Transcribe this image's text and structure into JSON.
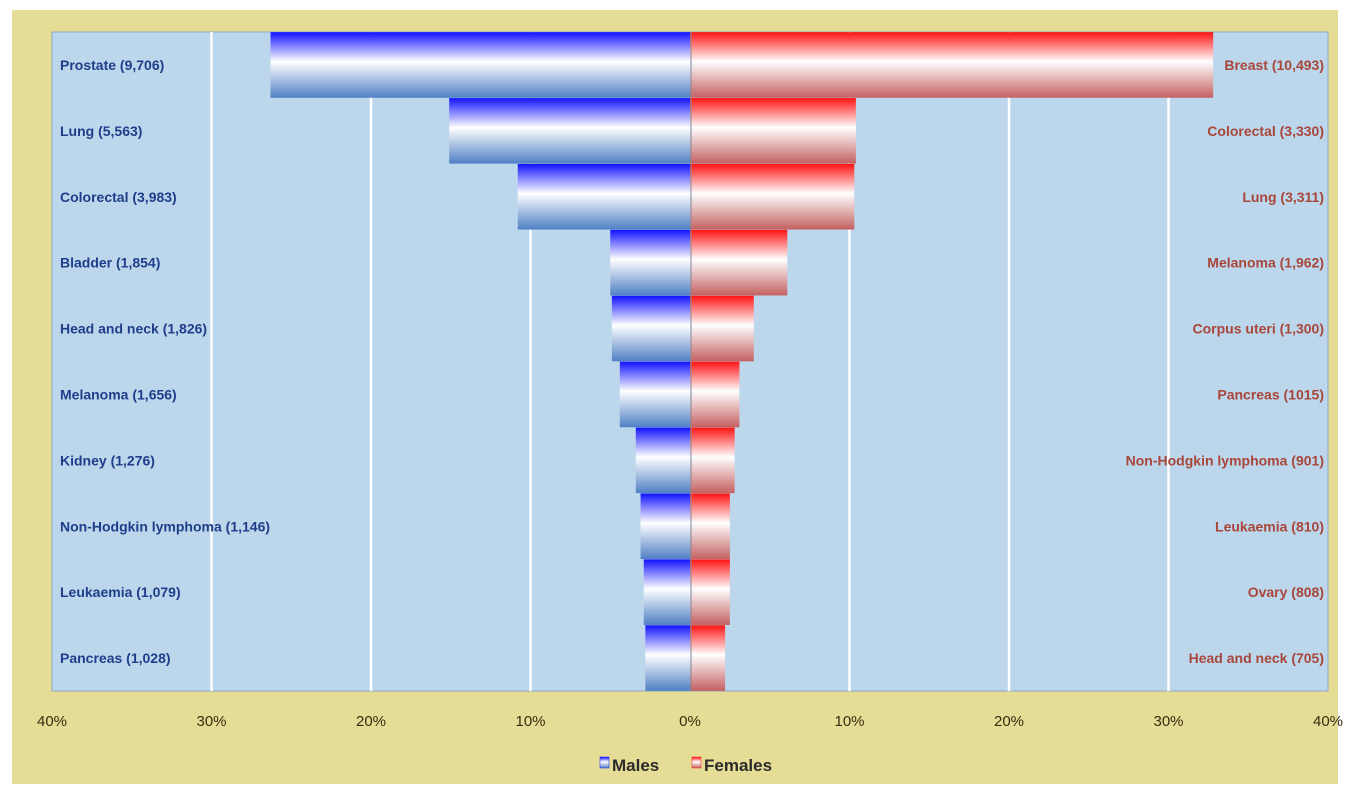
{
  "chart_data": {
    "type": "bar",
    "orientation": "horizontal",
    "layout": "population-pyramid",
    "xlim": [
      -40,
      40
    ],
    "ticks": [
      "40%",
      "30%",
      "20%",
      "10%",
      "0%",
      "10%",
      "20%",
      "30%",
      "40%"
    ],
    "grid": true,
    "legend_position": "bottom",
    "series": [
      {
        "name": "Males",
        "color": "#1a1aff",
        "side": "left",
        "labels": [
          "Prostate (9,706)",
          "Lung (5,563)",
          "Colorectal (3,983)",
          "Bladder (1,854)",
          "Head and neck (1,826)",
          "Melanoma (1,656)",
          "Kidney  (1,276)",
          "Non-Hodgkin lymphoma (1,146)",
          "Leukaemia (1,079)",
          "Pancreas (1,028)"
        ],
        "values": [
          26.3,
          15.1,
          10.8,
          5.0,
          4.9,
          4.4,
          3.4,
          3.1,
          2.9,
          2.8
        ]
      },
      {
        "name": "Females",
        "color": "#ff1a1a",
        "side": "right",
        "labels": [
          "Breast (10,493)",
          "Colorectal  (3,330)",
          "Lung (3,311)",
          "Melanoma (1,962)",
          "Corpus uteri  (1,300)",
          "Pancreas (1015)",
          "Non-Hodgkin lymphoma (901)",
          "Leukaemia  (810)",
          "Ovary (808)",
          "Head and neck (705)"
        ],
        "values": [
          32.8,
          10.4,
          10.3,
          6.1,
          4.0,
          3.1,
          2.8,
          2.5,
          2.5,
          2.2
        ]
      }
    ]
  }
}
